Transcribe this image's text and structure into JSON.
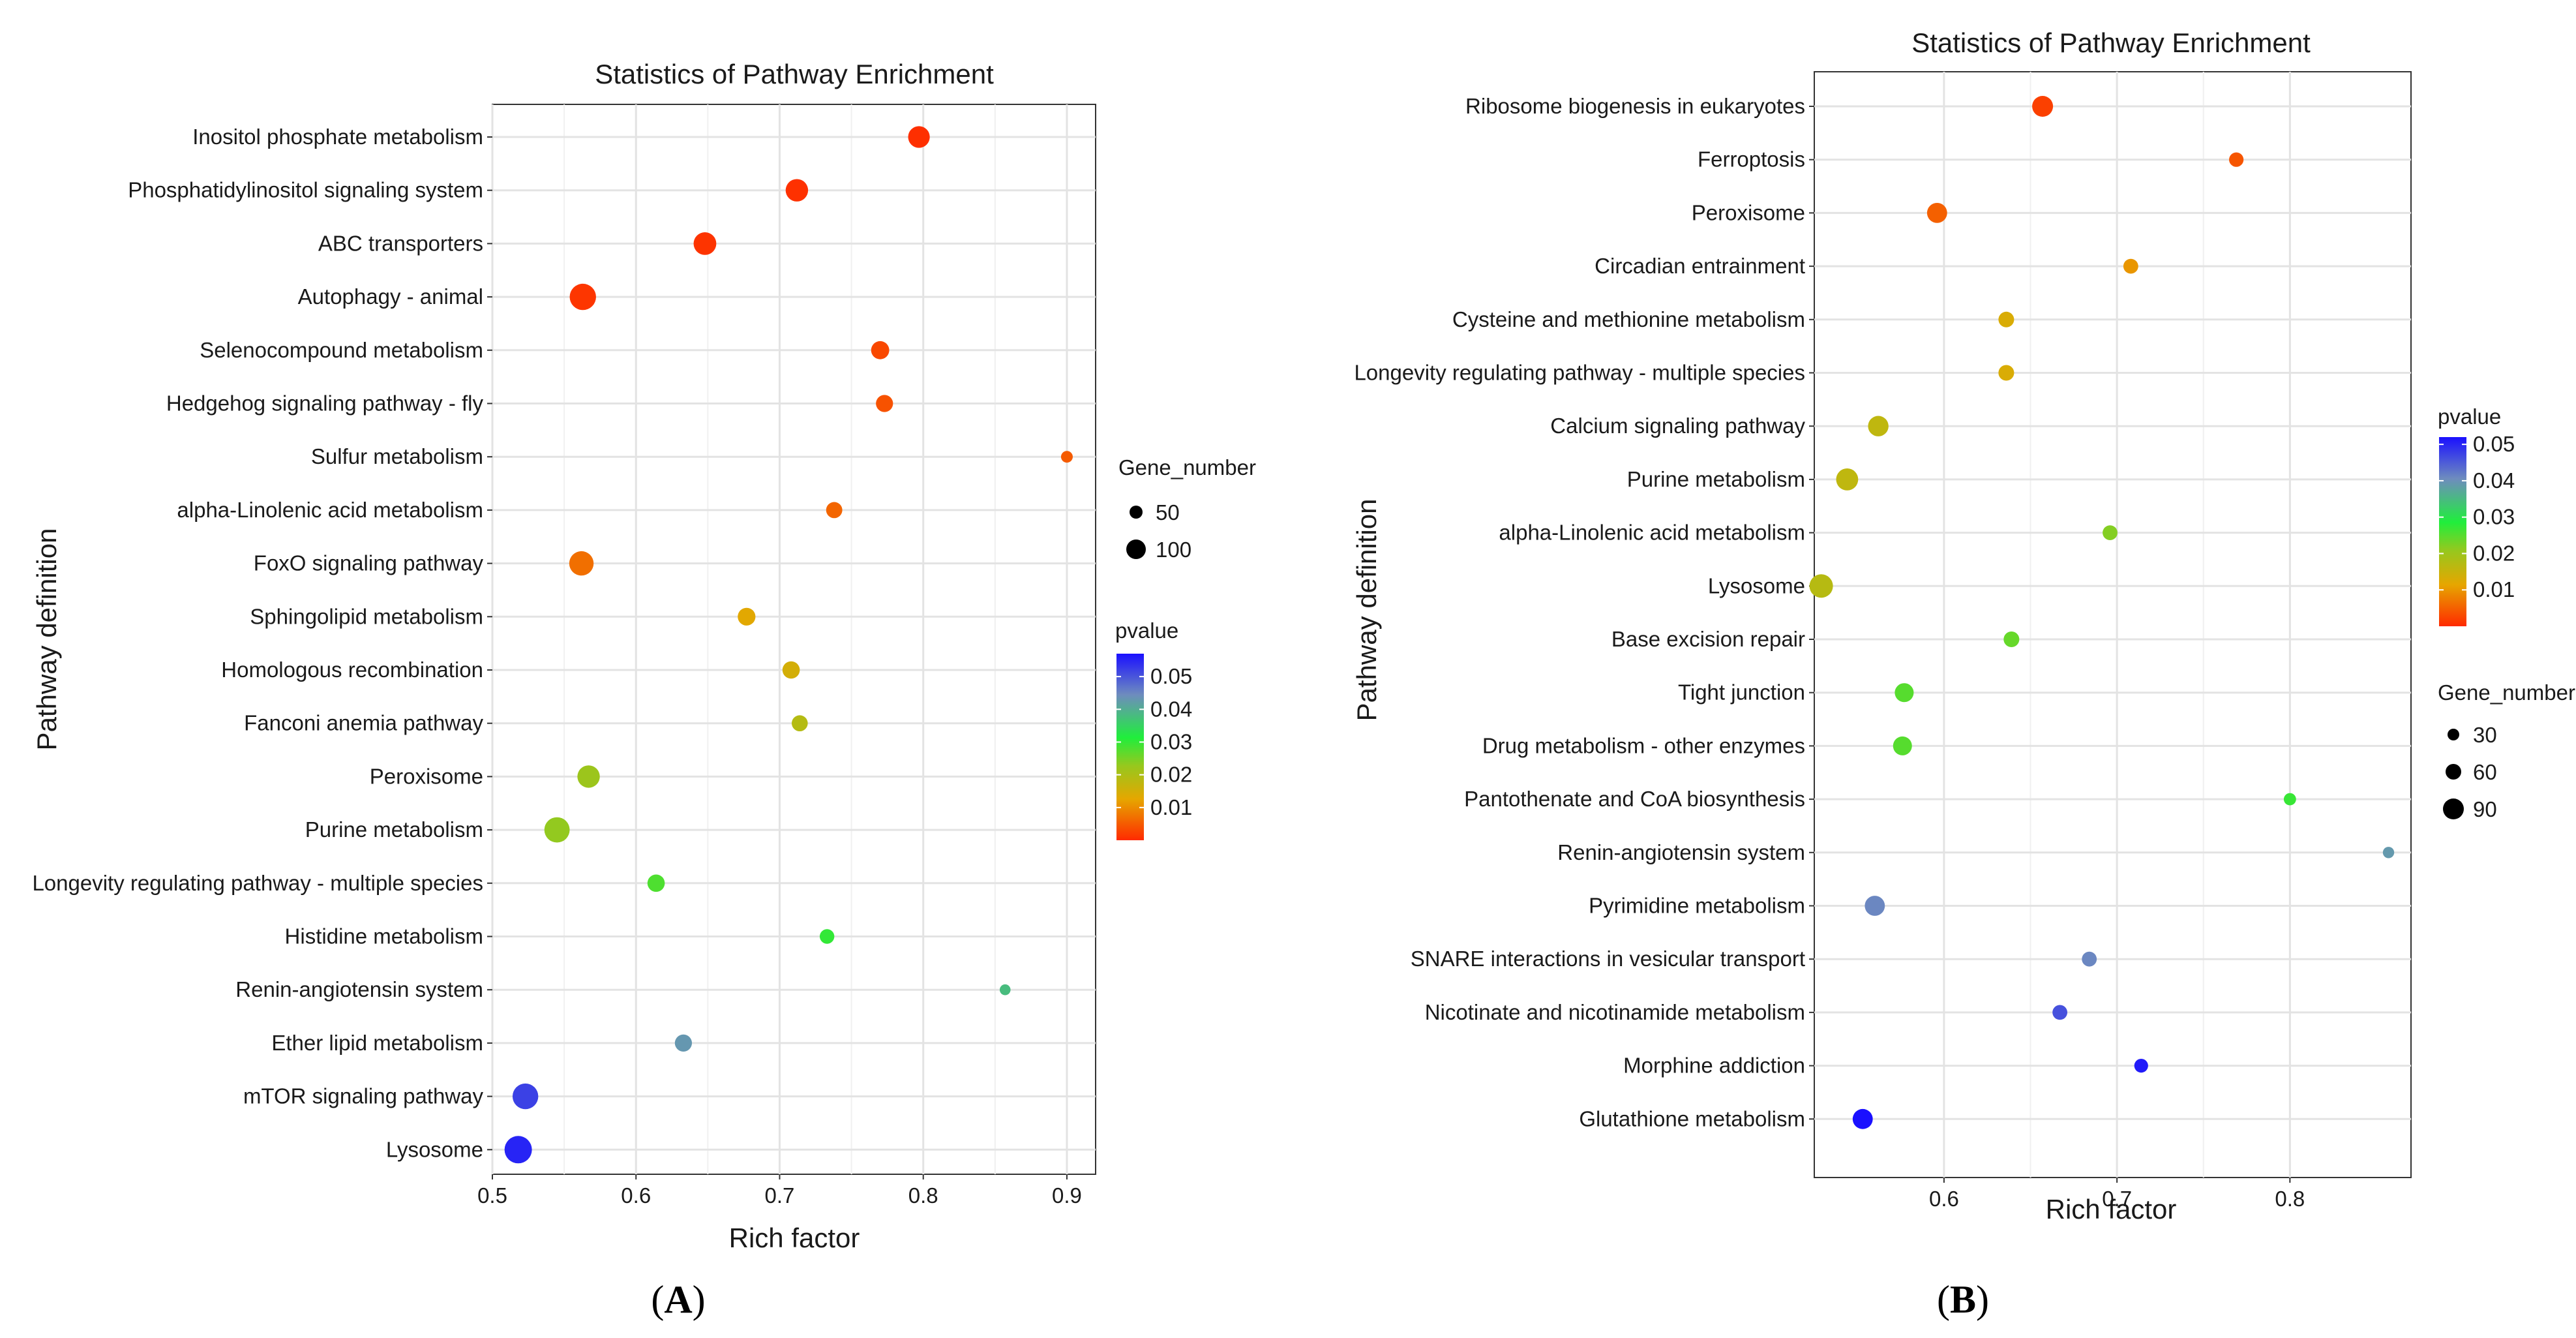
{
  "chart_data": [
    {
      "panel_label": "A",
      "type": "scatter",
      "title": "Statistics of Pathway Enrichment",
      "xlabel": "Rich factor",
      "ylabel": "Pathway definition",
      "xlim": [
        0.5,
        0.92
      ],
      "xticks": [
        0.5,
        0.6,
        0.7,
        0.8,
        0.9
      ],
      "xtick_labels": [
        "0.5",
        "0.6",
        "0.7",
        "0.8",
        "0.9"
      ],
      "grid": true,
      "categories": [
        "Inositol phosphate metabolism",
        "Phosphatidylinositol signaling system",
        "ABC transporters",
        "Autophagy - animal",
        "Selenocompound metabolism",
        "Hedgehog signaling pathway - fly",
        "Sulfur metabolism",
        "alpha-Linolenic acid metabolism",
        "FoxO signaling pathway",
        "Sphingolipid metabolism",
        "Homologous recombination",
        "Fanconi anemia pathway",
        "Peroxisome",
        "Purine metabolism",
        "Longevity regulating pathway - multiple species",
        "Histidine metabolism",
        "Renin-angiotensin system",
        "Ether lipid metabolism",
        "mTOR signaling pathway",
        "Lysosome"
      ],
      "rich_factor": [
        0.797,
        0.712,
        0.648,
        0.563,
        0.77,
        0.773,
        0.9,
        0.738,
        0.562,
        0.677,
        0.708,
        0.714,
        0.567,
        0.545,
        0.614,
        0.733,
        0.857,
        0.633,
        0.523,
        0.518
      ],
      "gene_number": [
        62,
        70,
        72,
        112,
        35,
        28,
        5,
        23,
        90,
        32,
        30,
        22,
        70,
        100,
        30,
        15,
        3,
        28,
        105,
        125
      ],
      "pvalue": [
        0.0005,
        0.0007,
        0.001,
        0.0012,
        0.003,
        0.004,
        0.005,
        0.006,
        0.007,
        0.013,
        0.015,
        0.019,
        0.022,
        0.023,
        0.028,
        0.03,
        0.038,
        0.043,
        0.052,
        0.055
      ],
      "size_legend": {
        "title": "Gene_number",
        "values": [
          50,
          100
        ]
      },
      "color_legend": {
        "title": "pvalue",
        "range": [
          0,
          0.057
        ],
        "ticks": [
          0.05,
          0.04,
          0.03,
          0.02,
          0.01
        ],
        "tick_labels": [
          "0.05",
          "0.04",
          "0.03",
          "0.02",
          "0.01"
        ]
      }
    },
    {
      "panel_label": "B",
      "type": "scatter",
      "title": "Statistics of Pathway Enrichment",
      "xlabel": "Rich factor",
      "ylabel": "Pathway definition",
      "xlim": [
        0.525,
        0.87
      ],
      "xticks": [
        0.6,
        0.7,
        0.8
      ],
      "xtick_labels": [
        "0.6",
        "0.7",
        "0.8"
      ],
      "grid": true,
      "categories": [
        "Ribosome biogenesis in eukaryotes",
        "Ferroptosis",
        "Peroxisome",
        "Circadian entrainment",
        "Cysteine and methionine metabolism",
        "Longevity regulating pathway - multiple species",
        "Calcium signaling pathway",
        "Purine metabolism",
        "alpha-Linolenic acid metabolism",
        "Lysosome",
        "Base excision repair",
        "Tight junction",
        "Drug metabolism - other enzymes",
        "Pantothenate and CoA biosynthesis",
        "Renin-angiotensin system",
        "Pyrimidine metabolism",
        "SNARE interactions in vesicular transport",
        "Nicotinate and nicotinamide metabolism",
        "Morphine addiction",
        "Glutathione metabolism"
      ],
      "rich_factor": [
        0.657,
        0.769,
        0.596,
        0.708,
        0.636,
        0.636,
        0.562,
        0.544,
        0.696,
        0.529,
        0.639,
        0.577,
        0.576,
        0.8,
        0.857,
        0.56,
        0.684,
        0.667,
        0.714,
        0.553
      ],
      "gene_number": [
        70,
        18,
        62,
        20,
        25,
        25,
        65,
        82,
        20,
        100,
        25,
        50,
        50,
        8,
        5,
        62,
        20,
        20,
        15,
        62
      ],
      "pvalue": [
        0.002,
        0.004,
        0.005,
        0.01,
        0.013,
        0.013,
        0.016,
        0.016,
        0.022,
        0.017,
        0.024,
        0.025,
        0.025,
        0.027,
        0.039,
        0.041,
        0.041,
        0.046,
        0.051,
        0.054
      ],
      "size_legend": {
        "title": "Gene_number",
        "values": [
          30,
          60,
          90
        ]
      },
      "color_legend": {
        "title": "pvalue",
        "range": [
          0,
          0.052
        ],
        "ticks": [
          0.05,
          0.04,
          0.03,
          0.02,
          0.01
        ],
        "tick_labels": [
          "0.05",
          "0.04",
          "0.03",
          "0.02",
          "0.01"
        ]
      }
    }
  ],
  "colors": {
    "low_pvalue": "#ff2a00",
    "mid1_pvalue": "#e6a600",
    "mid2_pvalue": "#96c81e",
    "mid3_pvalue": "#20ee3c",
    "mid4_pvalue": "#6e8cbe",
    "high_pvalue": "#1a10ff"
  }
}
